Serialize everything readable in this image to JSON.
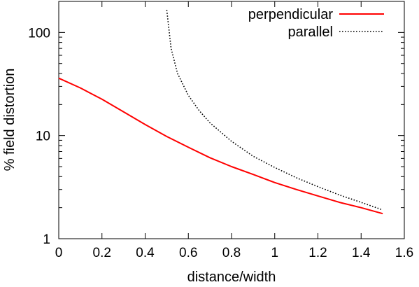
{
  "chart_data": {
    "type": "line",
    "title": "",
    "xlabel": "distance/width",
    "ylabel": "% field distortion",
    "xlim": [
      0,
      1.6
    ],
    "ylim": [
      1,
      200
    ],
    "yscale": "log",
    "grid": false,
    "legend_position": "top-right",
    "x_ticks": [
      0,
      0.2,
      0.4,
      0.6,
      0.8,
      1,
      1.2,
      1.4,
      1.6
    ],
    "x_tick_labels": [
      "0",
      "0.2",
      "0.4",
      "0.6",
      "0.8",
      "1",
      "1.2",
      "1.4",
      "1.6"
    ],
    "y_ticks": [
      1,
      10,
      100
    ],
    "y_tick_labels": [
      "1",
      "10",
      "100"
    ],
    "series": [
      {
        "name": "perpendicular",
        "color": "#ff0000",
        "style": "solid",
        "x": [
          0,
          0.1,
          0.2,
          0.3,
          0.4,
          0.5,
          0.6,
          0.7,
          0.8,
          0.9,
          1.0,
          1.1,
          1.2,
          1.3,
          1.4,
          1.5
        ],
        "y": [
          36,
          29,
          22.5,
          17,
          12.8,
          9.8,
          7.7,
          6.1,
          5.0,
          4.2,
          3.5,
          3.0,
          2.6,
          2.25,
          2.0,
          1.75
        ]
      },
      {
        "name": "parallel",
        "color": "#000000",
        "style": "dotted",
        "x": [
          0.5,
          0.52,
          0.55,
          0.6,
          0.65,
          0.7,
          0.8,
          0.9,
          1.0,
          1.1,
          1.2,
          1.3,
          1.4,
          1.5
        ],
        "y": [
          165,
          70,
          40,
          24.5,
          17.5,
          13.3,
          8.8,
          6.3,
          4.9,
          3.9,
          3.2,
          2.65,
          2.25,
          1.9
        ]
      }
    ]
  }
}
